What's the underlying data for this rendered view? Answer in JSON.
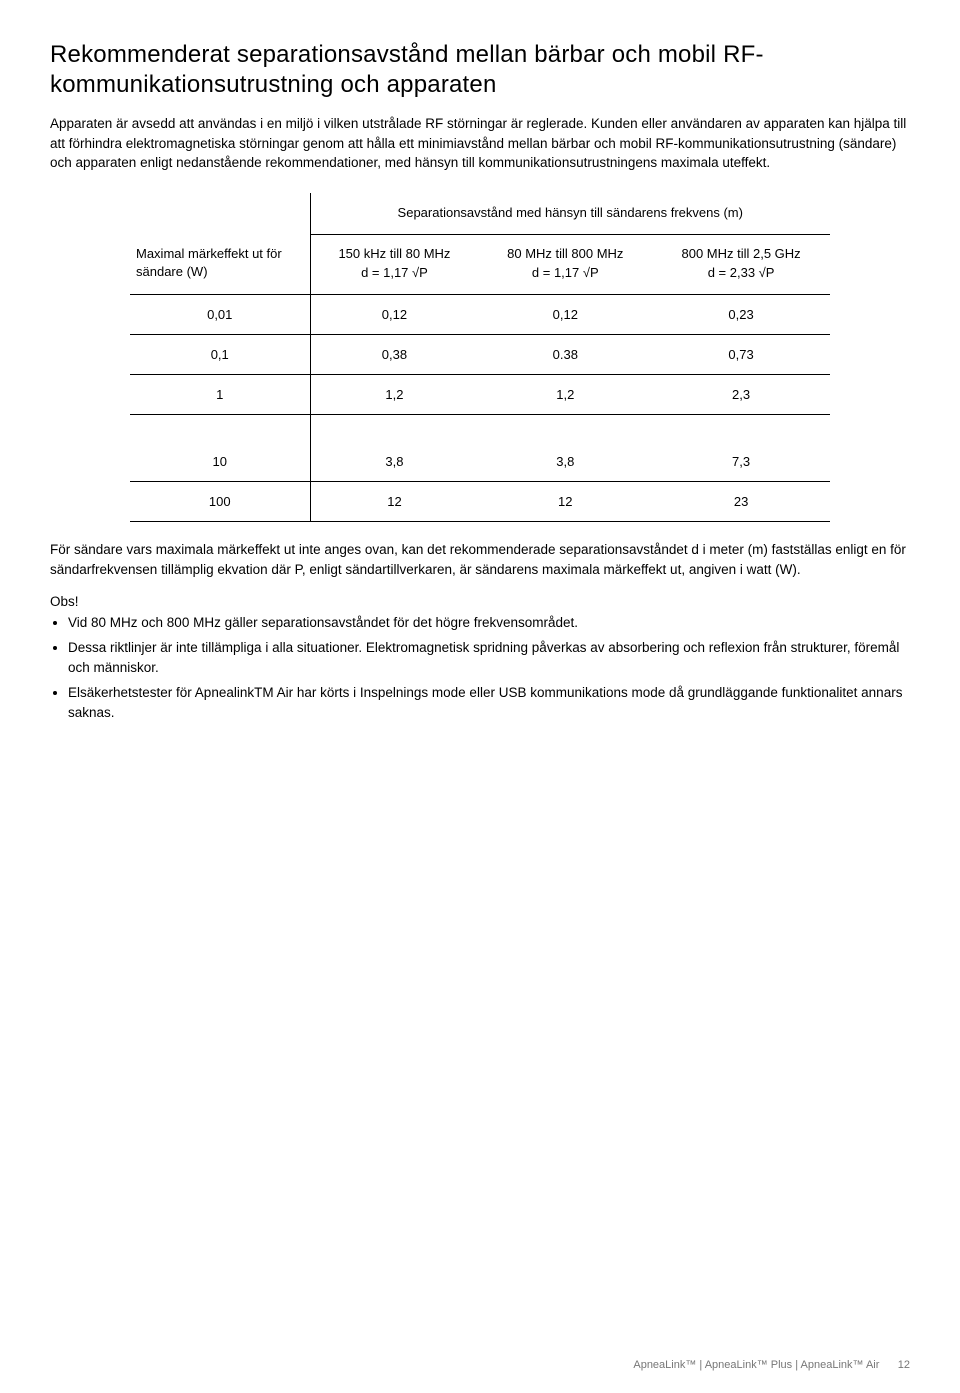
{
  "title": "Rekommenderat separationsavstånd mellan bärbar och mobil RF-kommunikationsutrustning och apparaten",
  "intro": "Apparaten är avsedd att användas i en miljö i vilken utstrålade RF störningar är reglerade. Kunden eller användaren av apparaten kan hjälpa till att förhindra elektromagnetiska störningar genom att hålla ett minimiavstånd mellan bärbar och mobil RF-kommunikationsutrustning (sändare) och apparaten enligt nedanstående rekommendationer, med hänsyn till kommunikationsutrustningens maximala uteffekt.",
  "table": {
    "row_header": "Maximal märkeffekt ut för sändare (W)",
    "span_header": "Separationsavstånd med hänsyn till sändarens frekvens (m)",
    "cols": [
      {
        "label": "150 kHz till 80 MHz",
        "formula": "d = 1,17 √P"
      },
      {
        "label": "80 MHz till 800 MHz",
        "formula": "d = 1,17 √P"
      },
      {
        "label": "800 MHz till 2,5 GHz",
        "formula": "d = 2,33 √P"
      }
    ],
    "rows_top": [
      {
        "p": "0,01",
        "v": [
          "0,12",
          "0,12",
          "0,23"
        ]
      },
      {
        "p": "0,1",
        "v": [
          "0,38",
          "0.38",
          "0,73"
        ]
      },
      {
        "p": "1",
        "v": [
          "1,2",
          "1,2",
          "2,3"
        ]
      }
    ],
    "rows_bottom": [
      {
        "p": "10",
        "v": [
          "3,8",
          "3,8",
          "7,3"
        ]
      },
      {
        "p": "100",
        "v": [
          "12",
          "12",
          "23"
        ]
      }
    ]
  },
  "below_table": "För sändare vars maximala märkeffekt ut inte anges ovan, kan det rekommenderade separationsavståndet d i meter (m) fastställas enligt en för sändarfrekvensen tillämplig ekvation där P, enligt sändartillverkaren, är sändarens maximala märkeffekt ut, angiven i watt (W).",
  "obs_label": "Obs!",
  "notes": [
    "Vid 80 MHz och 800 MHz gäller separationsavståndet för det högre frekvensområdet.",
    "Dessa riktlinjer är inte tillämpliga i alla situationer. Elektromagnetisk spridning påverkas av absorbering och reflexion från strukturer, föremål och människor.",
    "Elsäkerhetstester för ApnealinkTM Air har körts i Inspelnings mode eller USB kommunikations mode då grundläggande funktionalitet annars saknas."
  ],
  "footer": {
    "product": "ApneaLink™ | ApneaLink™ Plus | ApneaLink™ Air",
    "page": "12"
  }
}
